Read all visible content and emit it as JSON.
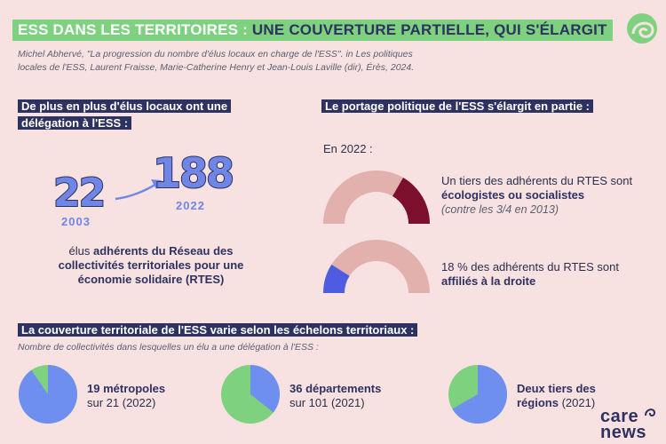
{
  "title": {
    "part1": "ESS DANS LES TERRITOIRES :",
    "part2": " UNE COUVERTURE PARTIELLE, QUI S'ÉLARGIT"
  },
  "source": "Michel Abhervé, \"La progression du nombre d'élus locaux en charge de l'ESS\". in Les politiques locales de l'ESS, Laurent Fraisse, Marie-Catherine Henry et Jean-Louis Laville (dir), Érès, 2024.",
  "section1": {
    "heading": "De plus en plus d'élus locaux ont une délégation à l'ESS :",
    "value_2003": "22",
    "year_2003": "2003",
    "value_2022": "188",
    "year_2022": "2022",
    "desc_pre": "élus ",
    "desc_bold": "adhérents du Réseau des collectivités territoriales pour une économie solidaire (RTES)"
  },
  "section2": {
    "heading": "Le portage politique de l'ESS s'élargit en partie :",
    "year_label": "En 2022 :",
    "gauge1": {
      "fraction": 0.3333,
      "text_pre": "Un tiers des adhérents du RTES sont ",
      "text_bold": "écologistes ou socialistes",
      "note": "(contre les 3/4 en 2013)"
    },
    "gauge2": {
      "fraction": 0.18,
      "text_pre": "18 % des adhérents du RTES sont ",
      "text_bold": "affiliés à la droite"
    }
  },
  "section3": {
    "heading": "La couverture territoriale de l'ESS varie selon les échelons territoriaux :",
    "subtitle": "Nombre de collectivités dans lesquelles un élu a une délégation à l'ESS :",
    "pies": [
      {
        "bold": "19 métropoles",
        "rest": "sur 21 (2022)",
        "fraction": 0.9048
      },
      {
        "bold": "36 départements",
        "rest": "sur 101 (2021)",
        "fraction": 0.3564
      },
      {
        "bold": "Deux tiers des régions",
        "rest": " (2021)",
        "fraction": 0.6667
      }
    ]
  },
  "colors": {
    "pie_blue": "#6f8ff0",
    "pie_green": "#7ed27f",
    "gauge_pink": "#e2b1ad",
    "gauge_dark": "#7c0f2c",
    "gauge_blue": "#4d5ce0",
    "navy": "#2e3260"
  },
  "logo": {
    "line1": "care",
    "line2": "news"
  }
}
